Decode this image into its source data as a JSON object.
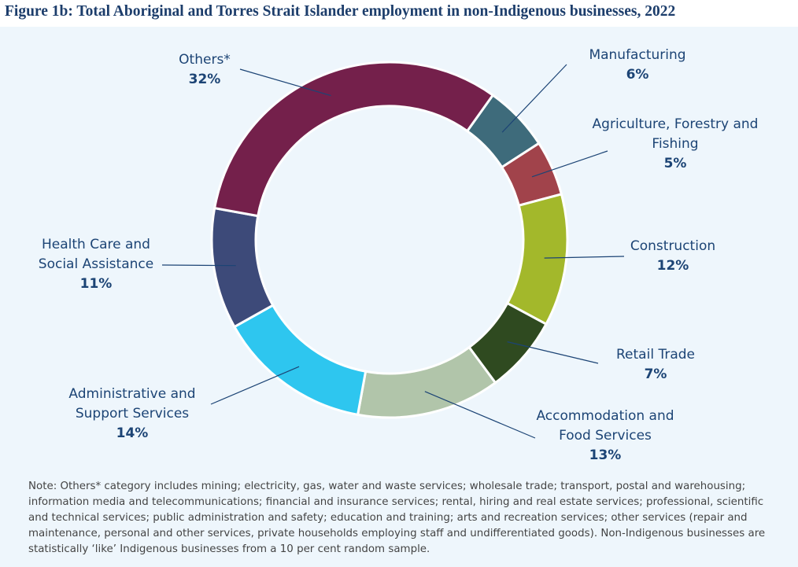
{
  "chart_data": {
    "type": "donut",
    "title": "Figure 1b: Total Aboriginal and Torres Strait Islander employment in non-Indigenous businesses, 2022",
    "categories": [
      "Manufacturing",
      "Agriculture, Forestry and Fishing",
      "Construction",
      "Retail Trade",
      "Accommodation and Food Services",
      "Administrative and Support Services",
      "Health Care and Social Assistance",
      "Others*"
    ],
    "values": [
      6,
      5,
      12,
      7,
      13,
      14,
      11,
      32
    ],
    "value_labels": [
      "6%",
      "5%",
      "12%",
      "7%",
      "13%",
      "14%",
      "11%",
      "32%"
    ],
    "colors": [
      "#3e6b7b",
      "#a1434b",
      "#a3b82b",
      "#2f4a20",
      "#b1c5aa",
      "#2ec6ef",
      "#3d4a79",
      "#74204b"
    ],
    "note": "Note: Others* category includes mining; electricity, gas, water and waste services; wholesale trade; transport, postal and warehousing; information media and telecommunications; financial and insurance services; rental, hiring and real estate services; professional, scientific and technical services; public administration and safety; education and training; arts and recreation services; other services (repair and maintenance, personal and other services, private households employing staff and undifferentiated goods). Non-Indigenous businesses are statistically ‘like’ Indigenous businesses from a 10 per cent random sample."
  }
}
